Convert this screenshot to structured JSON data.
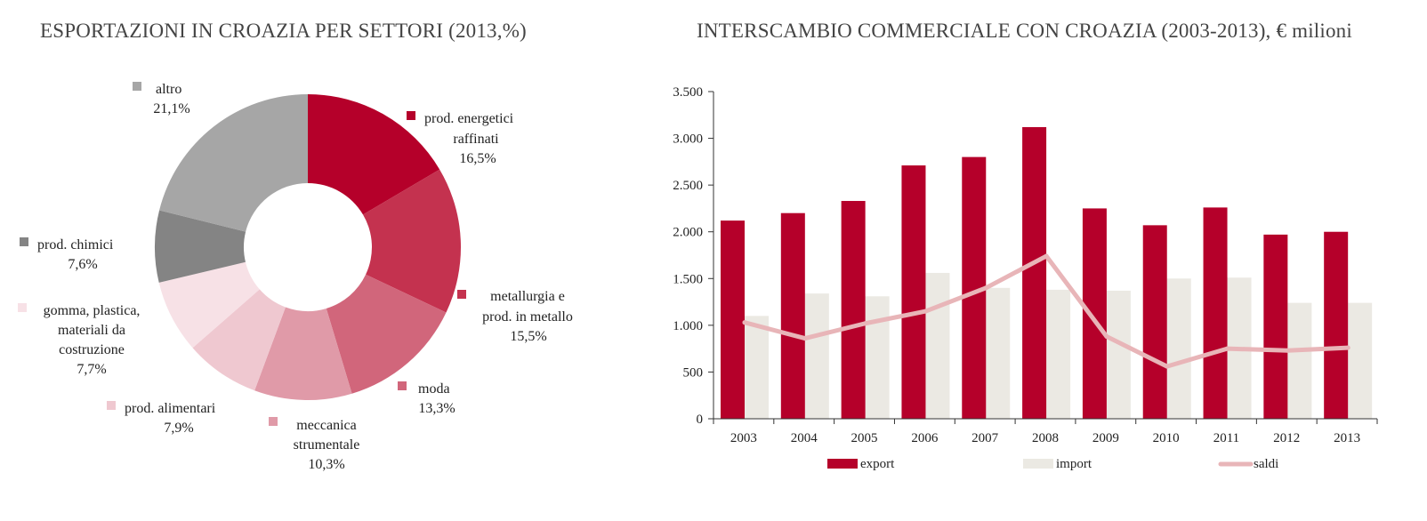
{
  "chart_data": [
    {
      "type": "pie",
      "title": "ESPORTAZIONI IN CROAZIA PER SETTORI (2013,%)",
      "slices": [
        {
          "label": [
            "prod. energetici",
            "raffinati"
          ],
          "value": 16.5,
          "value_label": "16,5%",
          "color": "#b5002a"
        },
        {
          "label": [
            "metallurgia e",
            "prod. in metallo"
          ],
          "value": 15.5,
          "value_label": "15,5%",
          "color": "#c4324f"
        },
        {
          "label": [
            "moda"
          ],
          "value": 13.3,
          "value_label": "13,3%",
          "color": "#d1667b"
        },
        {
          "label": [
            "meccanica",
            "strumentale"
          ],
          "value": 10.3,
          "value_label": "10,3%",
          "color": "#e09aa8"
        },
        {
          "label": [
            "prod. alimentari"
          ],
          "value": 7.9,
          "value_label": "7,9%",
          "color": "#efc8d0"
        },
        {
          "label": [
            "gomma, plastica,",
            "materiali da",
            "costruzione"
          ],
          "value": 7.7,
          "value_label": "7,7%",
          "color": "#f7e1e6"
        },
        {
          "label": [
            "prod. chimici"
          ],
          "value": 7.6,
          "value_label": "7,6%",
          "color": "#848484"
        },
        {
          "label": [
            "altro"
          ],
          "value": 21.1,
          "value_label": "21,1%",
          "color": "#a6a6a6"
        }
      ]
    },
    {
      "type": "bar",
      "title": "INTERSCAMBIO COMMERCIALE CON CROAZIA (2003-2013), € milioni",
      "categories": [
        "2003",
        "2004",
        "2005",
        "2006",
        "2007",
        "2008",
        "2009",
        "2010",
        "2011",
        "2012",
        "2013"
      ],
      "ylim": [
        0,
        3500
      ],
      "yticks": [
        0,
        500,
        1000,
        1500,
        2000,
        2500,
        3000,
        3500
      ],
      "ytick_labels": [
        "0",
        "500",
        "1.000",
        "1.500",
        "2.000",
        "2.500",
        "3.000",
        "3.500"
      ],
      "series": [
        {
          "name": "export",
          "kind": "bar",
          "color": "#b5002a",
          "values": [
            2120,
            2200,
            2330,
            2710,
            2800,
            3120,
            2250,
            2070,
            2260,
            1970,
            2000
          ]
        },
        {
          "name": "import",
          "kind": "bar",
          "color": "#ebe9e3",
          "values": [
            1100,
            1340,
            1310,
            1560,
            1400,
            1380,
            1370,
            1500,
            1510,
            1240,
            1240
          ]
        },
        {
          "name": "saldi",
          "kind": "line",
          "color": "#e8b5b8",
          "values": [
            1030,
            860,
            1020,
            1150,
            1400,
            1740,
            880,
            560,
            750,
            730,
            760
          ]
        }
      ],
      "legend_position": "bottom"
    }
  ]
}
